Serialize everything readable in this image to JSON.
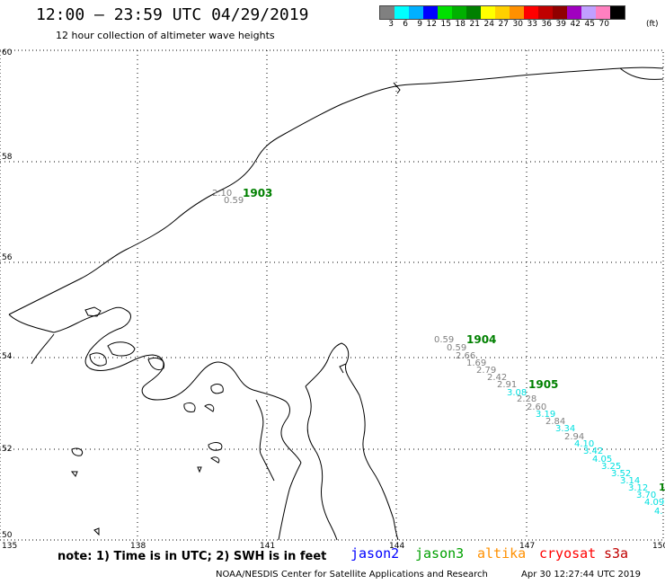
{
  "header": {
    "title": "12:00 — 23:59 UTC 04/29/2019",
    "subtitle": "12 hour collection of altimeter wave heights"
  },
  "legend": {
    "unit": "(ft)",
    "bins": [
      {
        "label": "3",
        "color": "#808080"
      },
      {
        "label": "6",
        "color": "#00ffff"
      },
      {
        "label": "9",
        "color": "#00b0ff"
      },
      {
        "label": "12",
        "color": "#0000ff"
      },
      {
        "label": "15",
        "color": "#00e000"
      },
      {
        "label": "18",
        "color": "#00b000"
      },
      {
        "label": "21",
        "color": "#008000"
      },
      {
        "label": "24",
        "color": "#ffff00"
      },
      {
        "label": "27",
        "color": "#ffd000"
      },
      {
        "label": "30",
        "color": "#ff9000"
      },
      {
        "label": "33",
        "color": "#ff0000"
      },
      {
        "label": "36",
        "color": "#c00000"
      },
      {
        "label": "39",
        "color": "#900000"
      },
      {
        "label": "42",
        "color": "#a000c0"
      },
      {
        "label": "45",
        "color": "#c0a0ff"
      },
      {
        "label": "70",
        "color": "#ff80c0"
      },
      {
        "label": "",
        "color": "#000000"
      }
    ]
  },
  "axes": {
    "lat_labels": [
      "60",
      "58",
      "56",
      "54",
      "52",
      "50"
    ],
    "lon_labels": [
      "135",
      "138",
      "141",
      "144",
      "147",
      "150"
    ]
  },
  "time_labels": [
    {
      "text": "1903",
      "color": "#008000"
    },
    {
      "text": "1904",
      "color": "#008000"
    },
    {
      "text": "1905",
      "color": "#008000"
    }
  ],
  "track_values": [
    {
      "text": "2.10",
      "color": "#808080"
    },
    {
      "text": "0.59",
      "color": "#808080"
    },
    {
      "text": "0.59",
      "color": "#808080"
    },
    {
      "text": "0.59",
      "color": "#808080"
    },
    {
      "text": "2.66",
      "color": "#808080"
    },
    {
      "text": "1.69",
      "color": "#808080"
    },
    {
      "text": "2.79",
      "color": "#808080"
    },
    {
      "text": "2.42",
      "color": "#808080"
    },
    {
      "text": "2.91",
      "color": "#808080"
    },
    {
      "text": "3.08",
      "color": "#00e0e0"
    },
    {
      "text": "2.28",
      "color": "#808080"
    },
    {
      "text": "2.60",
      "color": "#808080"
    },
    {
      "text": "3.19",
      "color": "#00e0e0"
    },
    {
      "text": "2.84",
      "color": "#808080"
    },
    {
      "text": "3.34",
      "color": "#00e0e0"
    },
    {
      "text": "2.94",
      "color": "#808080"
    },
    {
      "text": "4.10",
      "color": "#00e0e0"
    },
    {
      "text": "3.42",
      "color": "#00e0e0"
    },
    {
      "text": "4.05",
      "color": "#00e0e0"
    },
    {
      "text": "3.25",
      "color": "#00e0e0"
    },
    {
      "text": "3.52",
      "color": "#00e0e0"
    },
    {
      "text": "3.14",
      "color": "#00e0e0"
    },
    {
      "text": "3.12",
      "color": "#00e0e0"
    },
    {
      "text": "3.70",
      "color": "#00e0e0"
    },
    {
      "text": "4.09",
      "color": "#00e0e0"
    },
    {
      "text": "4.",
      "color": "#00e0e0"
    },
    {
      "text": "1",
      "color": "#008000"
    }
  ],
  "footer": {
    "note": "note: 1) Time is in UTC; 2) SWH is in feet",
    "satellites": [
      {
        "name": "jason2",
        "color": "#0000ff"
      },
      {
        "name": "jason3",
        "color": "#00a000"
      },
      {
        "name": "altika",
        "color": "#ff9000"
      },
      {
        "name": "cryosat",
        "color": "#ff0000"
      },
      {
        "name": "s3a",
        "color": "#c00000"
      }
    ],
    "credit": "NOAA/NESDIS Center for Satellite Applications and Research",
    "timestamp": "Apr 30 12:27:44 UTC 2019"
  }
}
